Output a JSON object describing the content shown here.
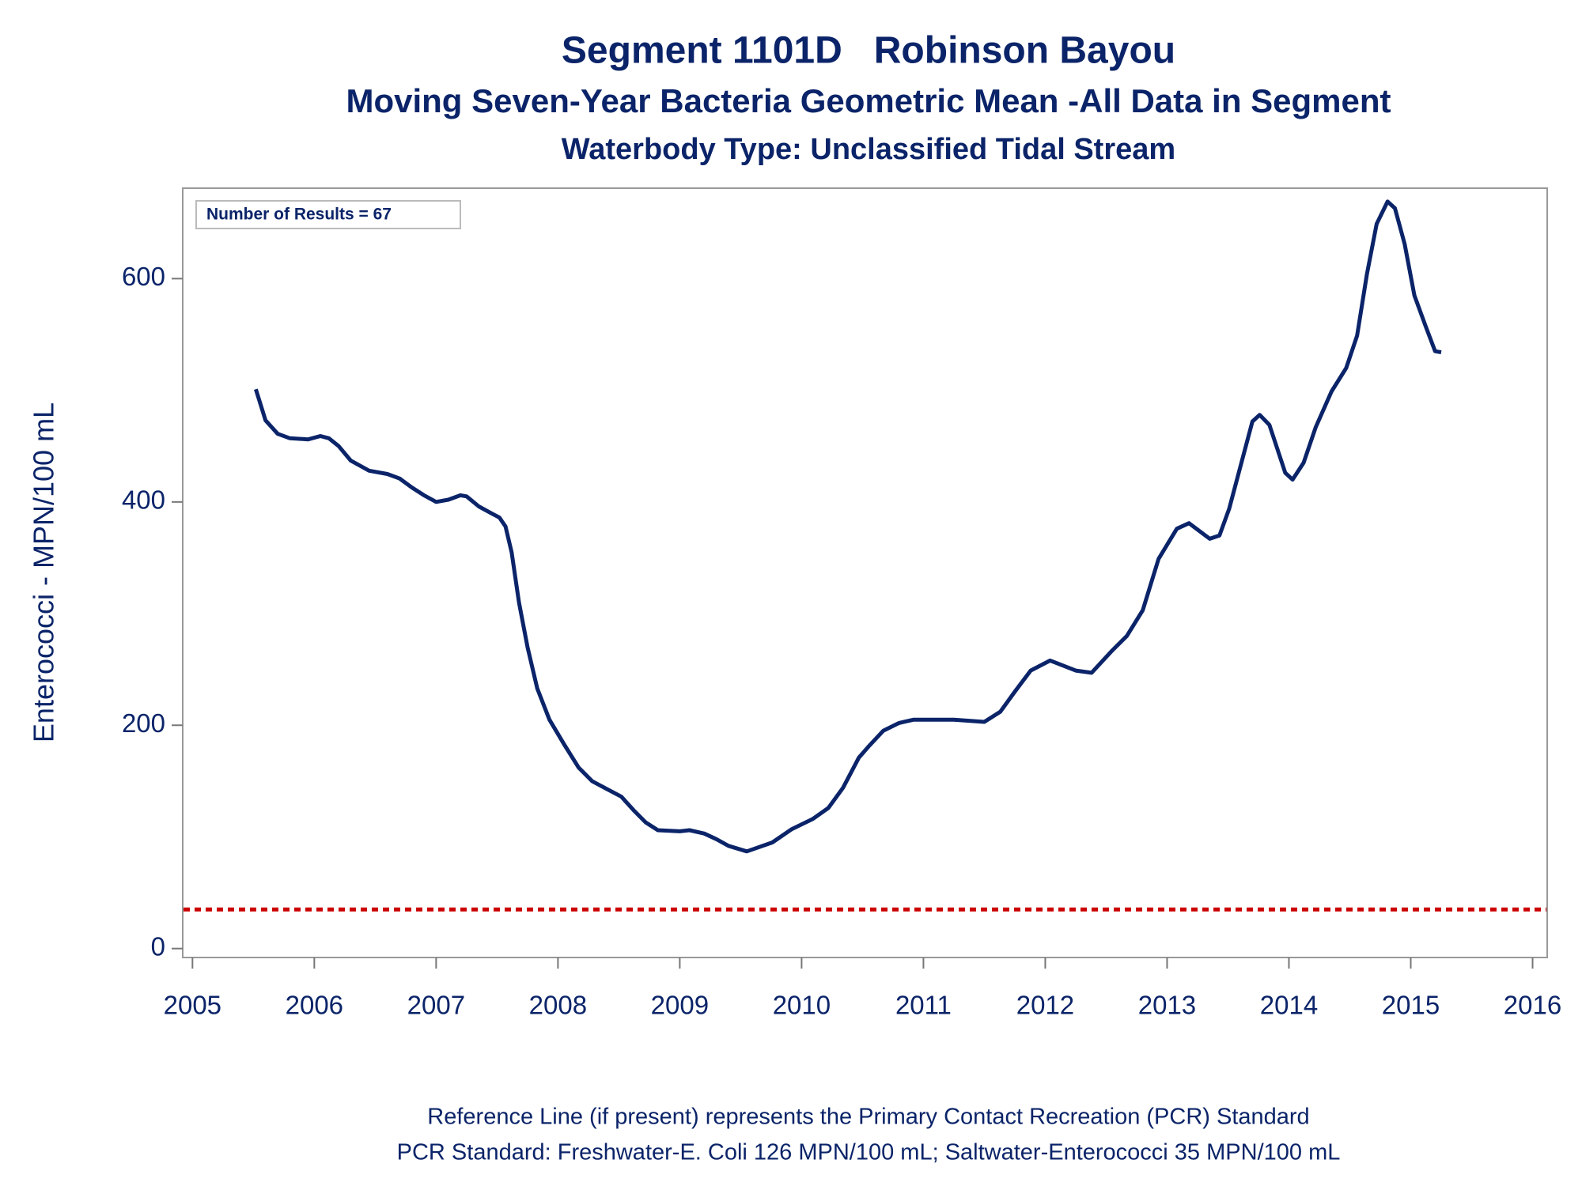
{
  "chart_data": {
    "type": "line",
    "title": "Segment 1101D   Robinson Bayou",
    "subtitle": "Moving Seven-Year Bacteria Geometric Mean -All Data in Segment",
    "subtitle2": "Waterbody Type: Unclassified Tidal Stream",
    "ylabel": "Enterococci - MPN/100 mL",
    "annotation": "Number of Results = 67",
    "footnotes": [
      "Reference Line (if present) represents the Primary Contact Recreation (PCR) Standard",
      "PCR Standard: Freshwater-E. Coli 126 MPN/100 mL; Saltwater-Enterococci 35 MPN/100 mL"
    ],
    "x": [
      2005.52,
      2005.6,
      2005.7,
      2005.8,
      2005.95,
      2006.05,
      2006.12,
      2006.2,
      2006.3,
      2006.45,
      2006.6,
      2006.7,
      2006.8,
      2006.9,
      2007.0,
      2007.1,
      2007.2,
      2007.25,
      2007.35,
      2007.45,
      2007.52,
      2007.57,
      2007.62,
      2007.68,
      2007.75,
      2007.83,
      2007.93,
      2008.05,
      2008.17,
      2008.28,
      2008.4,
      2008.52,
      2008.62,
      2008.72,
      2008.82,
      2009.0,
      2009.08,
      2009.2,
      2009.3,
      2009.4,
      2009.55,
      2009.76,
      2009.92,
      2010.09,
      2010.22,
      2010.34,
      2010.47,
      2010.55,
      2010.67,
      2010.8,
      2010.92,
      2011.1,
      2011.25,
      2011.5,
      2011.63,
      2011.75,
      2011.88,
      2012.04,
      2012.25,
      2012.38,
      2012.55,
      2012.67,
      2012.8,
      2012.93,
      2013.08,
      2013.18,
      2013.35,
      2013.43,
      2013.51,
      2013.6,
      2013.7,
      2013.76,
      2013.84,
      2013.97,
      2014.03,
      2014.12,
      2014.22,
      2014.35,
      2014.47,
      2014.56,
      2014.64,
      2014.72,
      2014.81,
      2014.87,
      2014.95,
      2015.03,
      2015.12,
      2015.2,
      2015.25
    ],
    "series": [
      {
        "color": "#0b2469",
        "values": [
          501,
          473,
          461,
          457,
          456,
          459,
          457,
          450,
          437,
          428,
          425,
          421,
          413,
          406,
          400,
          402,
          406,
          405,
          396,
          390,
          386,
          378,
          355,
          310,
          270,
          233,
          205,
          183,
          162,
          150,
          143,
          136,
          124,
          113,
          106,
          105,
          106,
          103,
          98,
          92,
          87,
          95,
          107,
          116,
          126,
          144,
          171,
          181,
          195,
          202,
          205,
          205,
          205,
          203,
          212,
          230,
          249,
          258,
          249,
          247,
          267,
          280,
          303,
          349,
          376,
          381,
          367,
          370,
          394,
          431,
          472,
          478,
          469,
          426,
          420,
          435,
          467,
          499,
          520,
          549,
          604,
          649,
          669,
          663,
          631,
          585,
          558,
          535,
          534
        ]
      }
    ],
    "reference_line": {
      "value": 35,
      "color": "#cc0000"
    },
    "xlim": [
      2004.92,
      2016.12
    ],
    "xticks": [
      2005,
      2006,
      2007,
      2008,
      2009,
      2010,
      2011,
      2012,
      2013,
      2014,
      2015,
      2016
    ],
    "ylim": [
      -8,
      681
    ],
    "yticks": [
      0,
      200,
      400,
      600
    ]
  }
}
